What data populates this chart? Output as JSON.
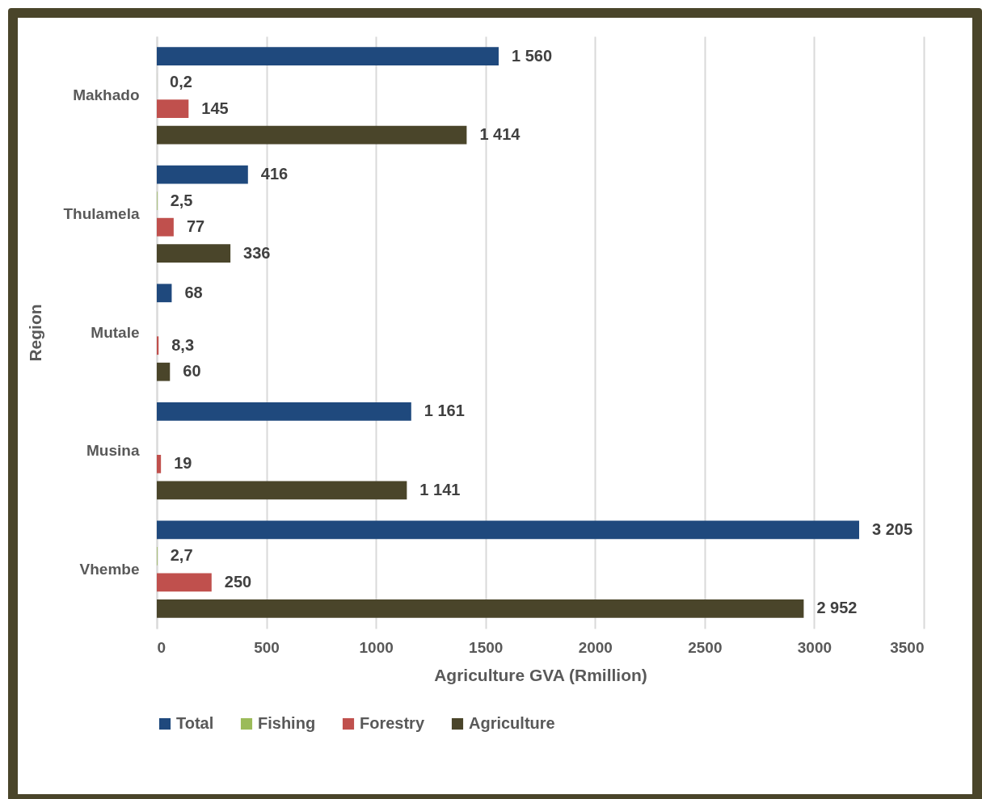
{
  "chart_data": {
    "type": "bar",
    "orientation": "horizontal",
    "xlabel": "Agriculture GVA (Rmillion)",
    "ylabel": "Region",
    "categories": [
      "Makhado",
      "Thulamela",
      "Mutale",
      "Musina",
      "Vhembe"
    ],
    "series": [
      {
        "name": "Total",
        "color": "#1f497d",
        "values": [
          1560,
          416,
          68,
          1161,
          3205
        ],
        "value_labels": [
          "1 560",
          "416",
          "68",
          "1 161",
          "3 205"
        ]
      },
      {
        "name": "Fishing",
        "color": "#9bbb59",
        "values": [
          0.2,
          2.5,
          null,
          null,
          2.7
        ],
        "value_labels": [
          "0,2",
          "2,5",
          null,
          null,
          "2,7"
        ]
      },
      {
        "name": "Forestry",
        "color": "#c0504d",
        "values": [
          145,
          77,
          8.3,
          19,
          250
        ],
        "value_labels": [
          "145",
          "77",
          "8,3",
          "19",
          "250"
        ]
      },
      {
        "name": "Agriculture",
        "color": "#4a452a",
        "values": [
          1414,
          336,
          60,
          1141,
          2952
        ],
        "value_labels": [
          "1 414",
          "336",
          "60",
          "1 141",
          "2 952"
        ]
      }
    ],
    "xlim": [
      0,
      3500
    ],
    "xticks": [
      0,
      500,
      1000,
      1500,
      2000,
      2500,
      3000,
      3500
    ],
    "grid": "x",
    "legend": "bottom"
  }
}
